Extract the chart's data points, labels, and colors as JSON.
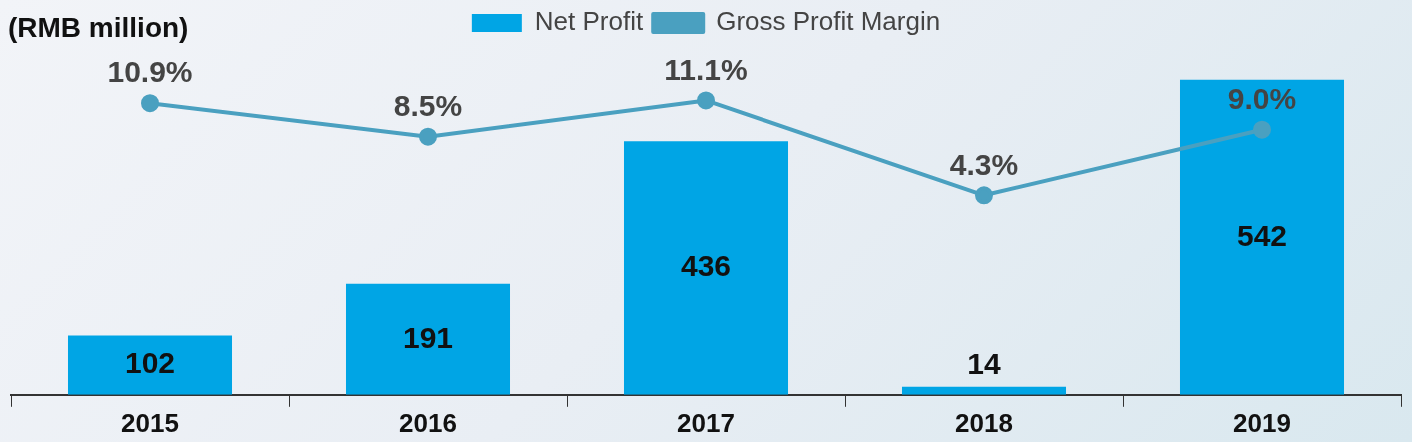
{
  "chart_data": {
    "type": "bar",
    "title": "(RMB million)",
    "categories": [
      "2015",
      "2016",
      "2017",
      "2018",
      "2019"
    ],
    "series": [
      {
        "name": "Net Profit",
        "color": "#00a5e5",
        "values": [
          102,
          191,
          436,
          14,
          542
        ]
      },
      {
        "name": "Gross Profit Margin",
        "type": "line",
        "axis": "y2",
        "color": "#4aa0c0",
        "values": [
          10.9,
          8.5,
          11.1,
          4.3,
          9.0
        ],
        "value_labels": [
          "10.9%",
          "8.5%",
          "11.1%",
          "4.3%",
          "9.0%"
        ]
      }
    ],
    "data_labels": true,
    "legend": "top",
    "marker": "circle",
    "grid": false,
    "tick_labels": "x"
  }
}
